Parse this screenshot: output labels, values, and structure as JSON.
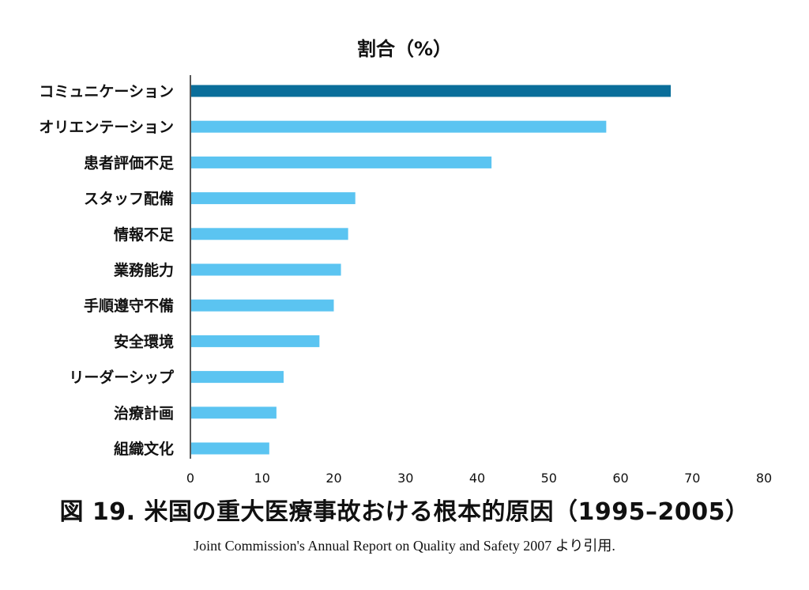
{
  "chart_data": {
    "type": "bar",
    "orientation": "horizontal",
    "title": "割合（%）",
    "categories": [
      "コミュニケーション",
      "オリエンテーション",
      "患者評価不足",
      "スタッフ配備",
      "情報不足",
      "業務能力",
      "手順遵守不備",
      "安全環境",
      "リーダーシップ",
      "治療計画",
      "組織文化"
    ],
    "values": [
      67,
      58,
      42,
      23,
      22,
      21,
      20,
      18,
      13,
      12,
      11
    ],
    "xlim": [
      0,
      80
    ],
    "xticks": [
      "0",
      "10",
      "20",
      "30",
      "40",
      "50",
      "60",
      "70",
      "80"
    ],
    "grid": false,
    "bar_colors": {
      "highlight": "#0a6e9a",
      "default": "#5bc4f1"
    }
  },
  "caption": "図 19.  米国の重大医療事故おける根本的原因（1995–2005）",
  "source": "Joint Commission's Annual Report on Quality and Safety 2007 より引用."
}
